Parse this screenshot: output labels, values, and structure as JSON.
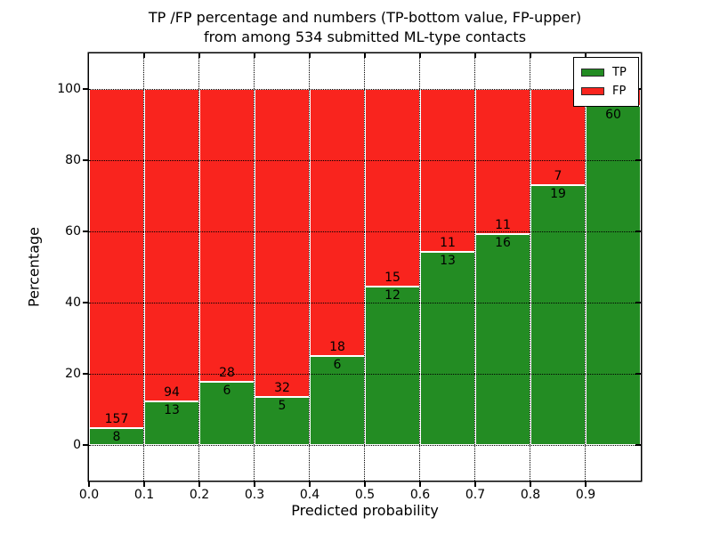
{
  "figure": {
    "title_line1": "TP /FP percentage and numbers (TP-bottom value, FP-upper)",
    "title_line2": "from among 534 submitted ML-type contacts"
  },
  "chart_data": {
    "type": "bar",
    "variant": "stacked-normalized-percent",
    "title": "TP /FP percentage and numbers (TP-bottom value, FP-upper) from among 534 submitted ML-type contacts",
    "xlabel": "Predicted probability",
    "ylabel": "Percentage",
    "total_contacts": 534,
    "bins": [
      "0.0-0.1",
      "0.1-0.2",
      "0.2-0.3",
      "0.3-0.4",
      "0.4-0.5",
      "0.5-0.6",
      "0.6-0.7",
      "0.7-0.8",
      "0.8-0.9",
      "0.9-1.0"
    ],
    "x_tick_labels": [
      "0.0",
      "0.1",
      "0.2",
      "0.3",
      "0.4",
      "0.5",
      "0.6",
      "0.7",
      "0.8",
      "0.9"
    ],
    "y_ticks": [
      0,
      20,
      40,
      60,
      80,
      100
    ],
    "xlim": [
      0.0,
      1.0
    ],
    "ylim": [
      -10,
      110
    ],
    "grid": {
      "on": true,
      "style": "dotted",
      "color": "#000000"
    },
    "bar_edge_color": "#ffffff",
    "series": [
      {
        "name": "TP",
        "color": "#238c23",
        "counts": [
          8,
          13,
          6,
          5,
          6,
          12,
          13,
          16,
          19,
          60
        ]
      },
      {
        "name": "FP",
        "color": "#f9241e",
        "counts": [
          157,
          94,
          28,
          32,
          18,
          15,
          11,
          11,
          7,
          3
        ]
      }
    ],
    "tp_percent_by_bin": [
      4.8,
      12.1,
      17.6,
      13.5,
      25.0,
      44.4,
      54.2,
      59.3,
      73.1,
      95.2
    ],
    "legend": {
      "position": "upper-right",
      "entries": [
        {
          "label": "TP",
          "color": "#238c23"
        },
        {
          "label": "FP",
          "color": "#f9241e"
        }
      ]
    }
  }
}
